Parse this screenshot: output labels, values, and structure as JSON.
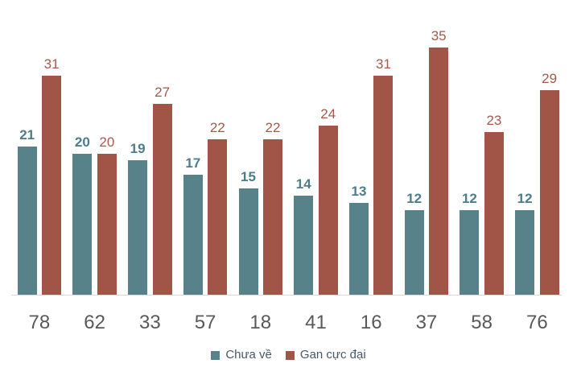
{
  "chart_data": {
    "type": "bar",
    "categories": [
      "78",
      "62",
      "33",
      "57",
      "18",
      "41",
      "16",
      "37",
      "58",
      "76"
    ],
    "series": [
      {
        "name": "Chưa về",
        "values": [
          21,
          20,
          19,
          17,
          15,
          14,
          13,
          12,
          12,
          12
        ],
        "color": "#588289",
        "label_color": "#4d7c8a",
        "label_bold": true
      },
      {
        "name": "Gan cực đại",
        "values": [
          31,
          20,
          27,
          22,
          22,
          24,
          31,
          35,
          23,
          29
        ],
        "color": "#a05546",
        "label_color": "#a45a4b",
        "label_bold": false
      }
    ],
    "title": "",
    "xlabel": "",
    "ylabel": "",
    "ylim": [
      0,
      40
    ],
    "grid": false,
    "y_axis_visible": false,
    "value_labels": true,
    "legend_position": "bottom",
    "axis_line_color": "#d9d9d9",
    "axis_label_color": "#595959",
    "background_color": "#ffffff"
  }
}
